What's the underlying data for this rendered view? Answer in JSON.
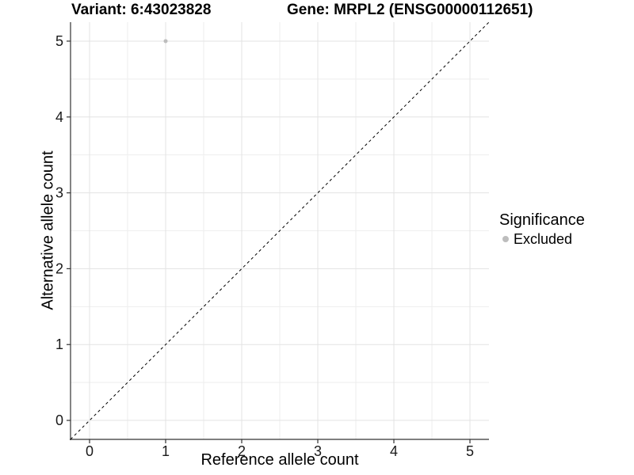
{
  "figure": {
    "title_left": "Variant: 6:43023828",
    "title_right": "Gene: MRPL2 (ENSG00000112651)"
  },
  "axes": {
    "x_label": "Reference allele count",
    "y_label": "Alternative allele count"
  },
  "legend": {
    "title": "Significance",
    "items": [
      {
        "label": "Excluded",
        "color": "#bdbdbd"
      }
    ]
  },
  "chart_data": {
    "type": "scatter",
    "title": "Variant: 6:43023828    Gene: MRPL2 (ENSG00000112651)",
    "xlabel": "Reference allele count",
    "ylabel": "Alternative allele count",
    "xlim": [
      -0.25,
      5.25
    ],
    "ylim": [
      -0.25,
      5.25
    ],
    "x_ticks": [
      0,
      1,
      2,
      3,
      4,
      5
    ],
    "y_ticks": [
      0,
      1,
      2,
      3,
      4,
      5
    ],
    "x_minor_ticks": [
      0.5,
      1.5,
      2.5,
      3.5,
      4.5
    ],
    "y_minor_ticks": [
      0.5,
      1.5,
      2.5,
      3.5,
      4.5
    ],
    "grid": true,
    "legend_position": "right",
    "series": [
      {
        "name": "Excluded",
        "color": "#bdbdbd",
        "points": [
          {
            "x": 1,
            "y": 5
          }
        ]
      }
    ],
    "reference_line": {
      "slope": 1,
      "intercept": 0,
      "style": "dashed",
      "color": "#000000"
    },
    "colors": {
      "background": "#ffffff",
      "grid_major": "#e3e3e3",
      "grid_minor": "#eeeeee",
      "axis_line": "#333333",
      "tick_label": "#1a1a1a",
      "point": "#bdbdbd"
    }
  }
}
